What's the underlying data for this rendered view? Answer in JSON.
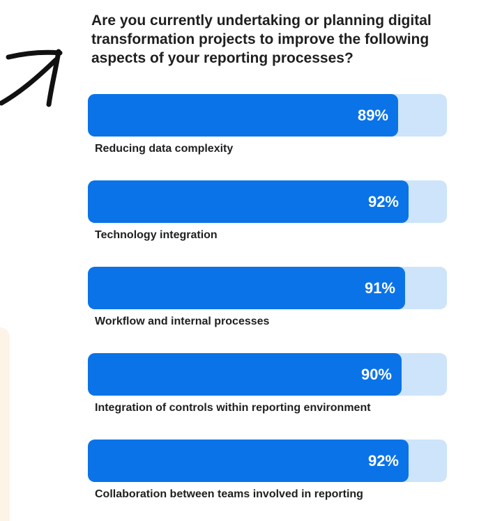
{
  "question": "Are you currently undertaking or planning digital transformation projects to improve the following aspects of your reporting processes?",
  "chart_data": {
    "type": "bar",
    "orientation": "horizontal",
    "title": "Are you currently undertaking or planning digital transformation projects to improve the following aspects of your reporting processes?",
    "categories": [
      "Reducing data complexity",
      "Technology integration",
      "Workflow and internal processes",
      "Integration of controls within reporting environment",
      "Collaboration between teams involved in reporting"
    ],
    "values": [
      89,
      92,
      91,
      90,
      92
    ],
    "value_labels": [
      "89%",
      "92%",
      "91%",
      "90%",
      "92%"
    ],
    "xlim": [
      0,
      100
    ],
    "unit": "%",
    "grid": false,
    "legend": "none"
  },
  "colors": {
    "bar_fill": "#0a73e8",
    "bar_track": "#cde4fb",
    "text": "#1f1f1f",
    "value_text": "#ffffff",
    "side_panel": "#fdf3e6"
  },
  "decorations": {
    "arrow_icon": "hand-drawn-arrow-icon"
  }
}
